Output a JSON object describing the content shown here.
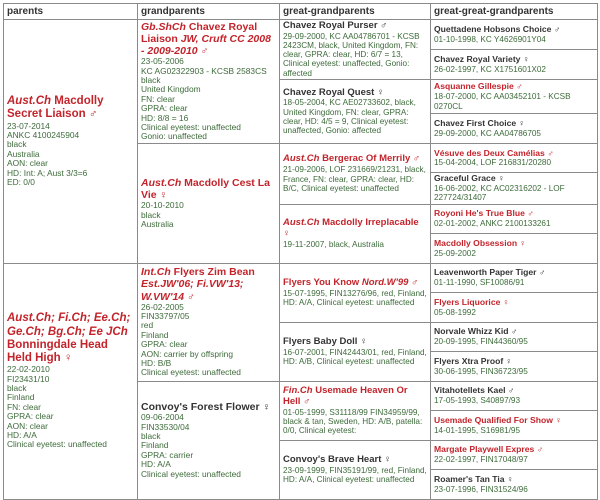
{
  "header": [
    "parents",
    "grandparents",
    "great-grandparents",
    "great-great-grandparents"
  ],
  "colors": {
    "titled_name": "#c3242b",
    "plain_name": "#333333",
    "details": "#3d6b3a"
  },
  "parents": [
    {
      "prefix": "Aust.Ch",
      "name": "Macdolly Secret Liaison",
      "suffix": "",
      "sex": "♂",
      "red": true,
      "details": [
        "23-07-2014",
        "ANKC 4100245904",
        "black",
        "Australia",
        "AON: clear",
        "HD: Int: A; Aust 3/3=6",
        "ED: 0/0"
      ]
    },
    {
      "prefix": "Aust.Ch; Fi.Ch; Ee.Ch; Ge.Ch; Bg.Ch; Ee JCh",
      "name": "Bonningdale Head Held High",
      "suffix": "",
      "sex": "♀",
      "red": true,
      "details": [
        "22-02-2010",
        "FI23431/10",
        "black",
        "Finland",
        "FN: clear",
        "GPRA: clear",
        "AON: clear",
        "HD: A/A",
        "Clinical eyetest: unaffected"
      ]
    }
  ],
  "grandparents": [
    {
      "prefix": "Gb.ShCh",
      "name": "Chavez Royal Liaison",
      "suffix": "JW, Cruft CC 2008 - 2009-2010",
      "sex": "♂",
      "red": true,
      "details": [
        "23-05-2006",
        "KC AG02322903 - KCSB 2583CS",
        "black",
        "United Kingdom",
        "FN: clear",
        "GPRA: clear",
        "HD: 8/8 = 16",
        "Clinical eyetest: unaffected",
        "Gonio: unaffected"
      ]
    },
    {
      "prefix": "Aust.Ch",
      "name": "Macdolly Cest La Vie",
      "suffix": "",
      "sex": "♀",
      "red": true,
      "details": [
        "20-10-2010",
        "black",
        "Australia"
      ]
    },
    {
      "prefix": "Int.Ch",
      "name": "Flyers Zim Bean",
      "suffix": "Est.JW'06; Fi.VW'13; W.VW'14",
      "sex": "♂",
      "red": true,
      "details": [
        "26-02-2005",
        "FIN33797/05",
        "red",
        "Finland",
        "GPRA: clear",
        "AON: carrier by offspring",
        "HD: B/B",
        "Clinical eyetest: unaffected"
      ]
    },
    {
      "prefix": "",
      "name": "Convoy's Forest Flower",
      "suffix": "",
      "sex": "♀",
      "red": false,
      "details": [
        "09-06-2004",
        "FIN33530/04",
        "black",
        "Finland",
        "GPRA: carrier",
        "HD: A/A",
        "Clinical eyetest: unaffected"
      ]
    }
  ],
  "great_grandparents": [
    {
      "prefix": "",
      "name": "Chavez Royal Purser",
      "suffix": "",
      "sex": "♂",
      "red": false,
      "details": "29-09-2000, KC AA04786701 - KCSB 2423CM, black, United Kingdom, FN: clear, GPRA: clear, HD: 6/7 = 13, Clinical eyetest: unaffected, Gonio: affected"
    },
    {
      "prefix": "",
      "name": "Chavez Royal Quest",
      "suffix": "",
      "sex": "♀",
      "red": false,
      "details": "18-05-2004, KC AE02733602, black, United Kingdom, FN: clear, GPRA: clear, HD: 4/5 = 9, Clinical eyetest: unaffected, Gonio: affected"
    },
    {
      "prefix": "Aust.Ch",
      "name": "Bergerac Of Merrily",
      "suffix": "",
      "sex": "♂",
      "red": true,
      "details": "21-09-2006, LOF 231669/21231, black, France, FN: clear, GPRA: clear, HD: B/C, Clinical eyetest: unaffected"
    },
    {
      "prefix": "Aust.Ch",
      "name": "Macdolly Irreplacable",
      "suffix": "",
      "sex": "♀",
      "red": true,
      "details": "19-11-2007, black, Australia"
    },
    {
      "prefix": "",
      "name": "Flyers You Know",
      "suffix": "Nord.W'99",
      "sex": "♂",
      "red": true,
      "details": "15-07-1995, FIN13276/96, red, Finland, HD: A/A, Clinical eyetest: unaffected"
    },
    {
      "prefix": "",
      "name": "Flyers Baby Doll",
      "suffix": "",
      "sex": "♀",
      "red": false,
      "details": "16-07-2001, FIN42443/01, red, Finland, HD: A/B, Clinical eyetest: unaffected"
    },
    {
      "prefix": "Fin.Ch",
      "name": "Usemade Heaven Or Hell",
      "suffix": "",
      "sex": "♂",
      "red": true,
      "details": "01-05-1999, S31118/99 FIN34959/99, black & tan, Sweden, HD: A/B, patella: 0/0, Clinical eyetest:"
    },
    {
      "prefix": "",
      "name": "Convoy's Brave Heart",
      "suffix": "",
      "sex": "♀",
      "red": false,
      "details": "23-09-1999, FIN35191/99, red, Finland, HD: A/A, Clinical eyetest: unaffected"
    }
  ],
  "great_great_grandparents": [
    {
      "name": "Quettadene Hobsons Choice",
      "sex": "♂",
      "red": false,
      "details": "01-10-1998, KC Y4626901Y04"
    },
    {
      "name": "Chavez Royal Variety",
      "sex": "♀",
      "red": false,
      "details": "26-02-1997, KC X1751601X02"
    },
    {
      "name": "Asquanne Gillespie",
      "sex": "♂",
      "red": true,
      "details": "18-07-2000, KC AA03452101 - KCSB 0270CL"
    },
    {
      "name": "Chavez First Choice",
      "sex": "♀",
      "red": false,
      "details": "29-09-2000, KC AA04786705"
    },
    {
      "name": "Vésuve des Deux Camélias",
      "sex": "♂",
      "red": true,
      "details": "15-04-2004, LOF 216831/20280"
    },
    {
      "name": "Graceful Grace",
      "sex": "♀",
      "red": false,
      "details": "16-06-2002, KC AC02316202 - LOF 227724/31407"
    },
    {
      "name": "Royoni He's True Blue",
      "sex": "♂",
      "red": true,
      "details": "02-01-2002, ANKC 2100133261"
    },
    {
      "name": "Macdolly Obsession",
      "sex": "♀",
      "red": true,
      "details": "25-09-2002"
    },
    {
      "name": "Leavenworth Paper Tiger",
      "sex": "♂",
      "red": false,
      "details": "01-11-1990, SF10086/91"
    },
    {
      "name": "Flyers Liquorice",
      "sex": "♀",
      "red": true,
      "details": "05-08-1992"
    },
    {
      "name": "Norvale Whizz Kid",
      "sex": "♂",
      "red": false,
      "details": "20-09-1995, FIN44360/95"
    },
    {
      "name": "Flyers Xtra Proof",
      "sex": "♀",
      "red": false,
      "details": "30-06-1995, FIN36723/95"
    },
    {
      "name": "Vitahotellets Kael",
      "sex": "♂",
      "red": false,
      "details": "17-05-1993, S40897/93"
    },
    {
      "name": "Usemade Qualified For Show",
      "sex": "♀",
      "red": true,
      "details": "14-01-1995, S16981/95"
    },
    {
      "name": "Margate Playwell Expres",
      "sex": "♂",
      "red": true,
      "details": "22-02-1997, FIN17048/97"
    },
    {
      "name": "Roamer's Tan Tia",
      "sex": "♀",
      "red": false,
      "details": "23-07-1996, FIN31524/96"
    }
  ]
}
